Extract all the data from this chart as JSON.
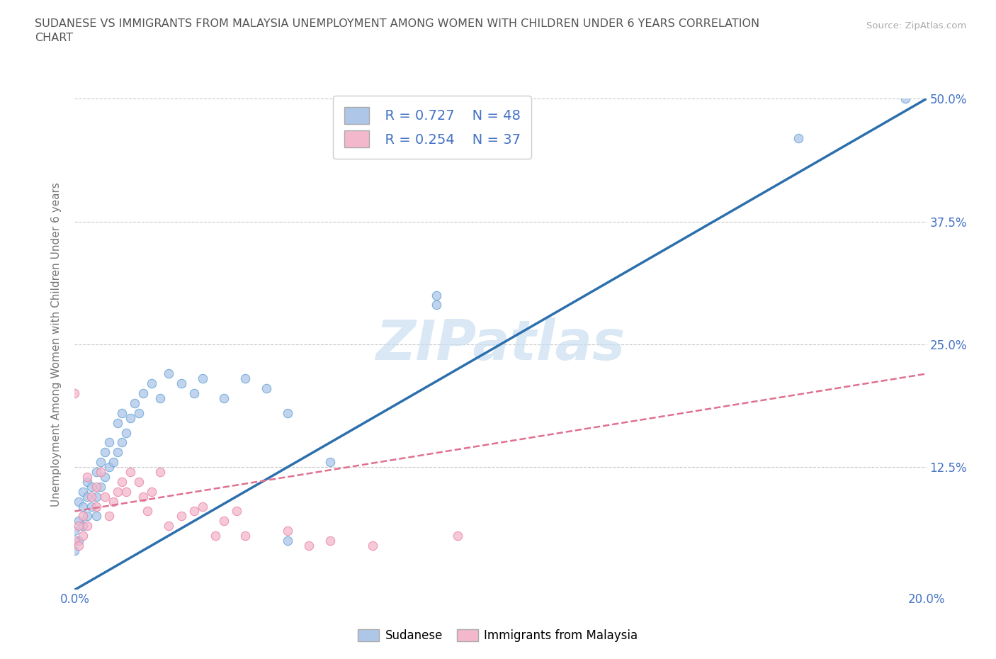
{
  "title_line1": "SUDANESE VS IMMIGRANTS FROM MALAYSIA UNEMPLOYMENT AMONG WOMEN WITH CHILDREN UNDER 6 YEARS CORRELATION",
  "title_line2": "CHART",
  "source_text": "Source: ZipAtlas.com",
  "ylabel": "Unemployment Among Women with Children Under 6 years",
  "xlim": [
    0.0,
    0.2
  ],
  "ylim": [
    0.0,
    0.5
  ],
  "blue_color": "#aec6e8",
  "blue_edge_color": "#5a9fd4",
  "pink_color": "#f4b8cc",
  "pink_edge_color": "#e87da0",
  "blue_line_color": "#2c6fad",
  "pink_line_color": "#e07090",
  "legend_R1": "R = 0.727",
  "legend_N1": "N = 48",
  "legend_R2": "R = 0.254",
  "legend_N2": "N = 37",
  "watermark": "ZIPatlas",
  "watermark_color": "#c5ddef",
  "background_color": "#ffffff",
  "grid_color": "#c8c8c8",
  "title_color": "#555555",
  "axis_label_color": "#777777",
  "tick_color": "#4472c4",
  "sudanese_x": [
    0.0,
    0.0,
    0.001,
    0.001,
    0.001,
    0.002,
    0.002,
    0.002,
    0.003,
    0.003,
    0.003,
    0.004,
    0.004,
    0.005,
    0.005,
    0.005,
    0.006,
    0.006,
    0.007,
    0.007,
    0.008,
    0.008,
    0.009,
    0.01,
    0.01,
    0.011,
    0.011,
    0.012,
    0.013,
    0.014,
    0.015,
    0.016,
    0.018,
    0.02,
    0.022,
    0.025,
    0.028,
    0.03,
    0.035,
    0.04,
    0.045,
    0.05,
    0.05,
    0.06,
    0.085,
    0.085,
    0.17,
    0.195
  ],
  "sudanese_y": [
    0.04,
    0.06,
    0.05,
    0.07,
    0.09,
    0.065,
    0.085,
    0.1,
    0.075,
    0.095,
    0.11,
    0.085,
    0.105,
    0.095,
    0.12,
    0.075,
    0.105,
    0.13,
    0.115,
    0.14,
    0.125,
    0.15,
    0.13,
    0.14,
    0.17,
    0.15,
    0.18,
    0.16,
    0.175,
    0.19,
    0.18,
    0.2,
    0.21,
    0.195,
    0.22,
    0.21,
    0.2,
    0.215,
    0.195,
    0.215,
    0.205,
    0.18,
    0.05,
    0.13,
    0.29,
    0.3,
    0.46,
    0.5
  ],
  "malaysia_x": [
    0.0,
    0.0,
    0.001,
    0.001,
    0.002,
    0.002,
    0.003,
    0.003,
    0.004,
    0.005,
    0.005,
    0.006,
    0.007,
    0.008,
    0.009,
    0.01,
    0.011,
    0.012,
    0.013,
    0.015,
    0.016,
    0.017,
    0.018,
    0.02,
    0.022,
    0.025,
    0.028,
    0.03,
    0.033,
    0.035,
    0.038,
    0.04,
    0.05,
    0.055,
    0.06,
    0.07,
    0.09
  ],
  "malaysia_y": [
    0.2,
    0.05,
    0.045,
    0.065,
    0.055,
    0.075,
    0.115,
    0.065,
    0.095,
    0.085,
    0.105,
    0.12,
    0.095,
    0.075,
    0.09,
    0.1,
    0.11,
    0.1,
    0.12,
    0.11,
    0.095,
    0.08,
    0.1,
    0.12,
    0.065,
    0.075,
    0.08,
    0.085,
    0.055,
    0.07,
    0.08,
    0.055,
    0.06,
    0.045,
    0.05,
    0.045,
    0.055
  ]
}
